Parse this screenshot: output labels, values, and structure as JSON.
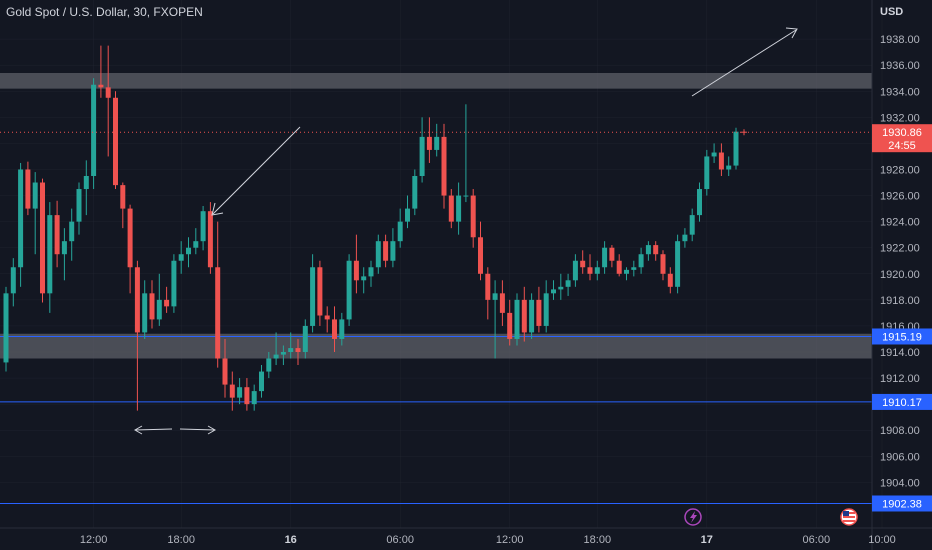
{
  "header": {
    "title": "Gold Spot / U.S. Dollar, 30, FXOPEN"
  },
  "price_axis": {
    "currency": "USD"
  },
  "price_tag": {
    "price": "1930.86",
    "countdown": "24:55"
  },
  "colors": {
    "bg": "#131722",
    "up": "#26a69a",
    "down": "#ef5350",
    "level_line": "#2962ff",
    "zone": "#5d6068",
    "grid": "#2a2e39"
  },
  "icons": [
    "flash-event-icon",
    "us-flag-event-icon"
  ],
  "chart_data": {
    "type": "candlestick",
    "title": "Gold Spot / U.S. Dollar, 30, FXOPEN",
    "ylim": [
      1900.5,
      1941.0
    ],
    "y_ticks": [
      "1904.00",
      "1906.00",
      "1908.00",
      "1910.00",
      "1912.00",
      "1914.00",
      "1916.00",
      "1918.00",
      "1920.00",
      "1922.00",
      "1924.00",
      "1926.00",
      "1928.00",
      "1930.00",
      "1932.00",
      "1934.00",
      "1936.00",
      "1938.00"
    ],
    "x_ticks": [
      {
        "label": "12:00",
        "index": 12,
        "bold": false
      },
      {
        "label": "18:00",
        "index": 24,
        "bold": false
      },
      {
        "label": "16",
        "index": 39,
        "bold": true
      },
      {
        "label": "06:00",
        "index": 54,
        "bold": false
      },
      {
        "label": "12:00",
        "index": 69,
        "bold": false
      },
      {
        "label": "18:00",
        "index": 81,
        "bold": false
      },
      {
        "label": "17",
        "index": 96,
        "bold": true
      },
      {
        "label": "06:00",
        "index": 111,
        "bold": false
      },
      {
        "label": "10:00",
        "index": 120,
        "bold": false
      }
    ],
    "candles": [
      [
        1913.2,
        1919.0,
        1912.5,
        1918.5
      ],
      [
        1918.5,
        1921.2,
        1917.5,
        1920.5
      ],
      [
        1920.5,
        1928.5,
        1919.0,
        1928.0
      ],
      [
        1928.0,
        1928.6,
        1924.5,
        1925.0
      ],
      [
        1925.0,
        1927.8,
        1921.5,
        1927.0
      ],
      [
        1927.0,
        1927.3,
        1917.8,
        1918.5
      ],
      [
        1918.5,
        1925.5,
        1917.0,
        1924.5
      ],
      [
        1924.5,
        1925.6,
        1920.5,
        1921.5
      ],
      [
        1921.5,
        1923.5,
        1919.5,
        1922.5
      ],
      [
        1922.5,
        1925.0,
        1921.0,
        1924.0
      ],
      [
        1924.0,
        1927.0,
        1923.0,
        1926.5
      ],
      [
        1926.5,
        1928.7,
        1924.5,
        1927.5
      ],
      [
        1927.5,
        1935.0,
        1926.5,
        1934.5
      ],
      [
        1934.5,
        1937.5,
        1933.5,
        1934.3
      ],
      [
        1934.3,
        1937.5,
        1929.0,
        1933.5
      ],
      [
        1933.5,
        1934.0,
        1926.5,
        1926.8
      ],
      [
        1926.8,
        1927.0,
        1923.5,
        1925.0
      ],
      [
        1925.0,
        1925.3,
        1918.5,
        1920.5
      ],
      [
        1920.5,
        1921.0,
        1909.5,
        1915.5
      ],
      [
        1915.5,
        1919.5,
        1915.0,
        1918.5
      ],
      [
        1918.5,
        1919.5,
        1915.8,
        1916.5
      ],
      [
        1916.5,
        1920.0,
        1916.0,
        1918.0
      ],
      [
        1918.0,
        1919.0,
        1917.0,
        1917.5
      ],
      [
        1917.5,
        1921.5,
        1917.0,
        1921.0
      ],
      [
        1921.0,
        1922.5,
        1920.0,
        1921.5
      ],
      [
        1921.5,
        1922.8,
        1920.5,
        1922.0
      ],
      [
        1922.0,
        1923.5,
        1921.5,
        1922.5
      ],
      [
        1922.5,
        1925.2,
        1921.8,
        1924.8
      ],
      [
        1924.8,
        1925.5,
        1920.0,
        1920.5
      ],
      [
        1920.5,
        1924.0,
        1912.8,
        1913.5
      ],
      [
        1913.5,
        1915.0,
        1910.5,
        1911.5
      ],
      [
        1911.5,
        1912.5,
        1909.5,
        1910.5
      ],
      [
        1910.5,
        1912.0,
        1910.0,
        1911.3
      ],
      [
        1911.3,
        1912.0,
        1909.5,
        1910.0
      ],
      [
        1910.0,
        1911.5,
        1909.5,
        1911.0
      ],
      [
        1911.0,
        1913.0,
        1910.5,
        1912.5
      ],
      [
        1912.5,
        1914.0,
        1912.0,
        1913.5
      ],
      [
        1913.5,
        1915.5,
        1913.0,
        1913.8
      ],
      [
        1913.8,
        1914.5,
        1913.0,
        1914.0
      ],
      [
        1914.0,
        1915.5,
        1913.5,
        1914.3
      ],
      [
        1914.3,
        1915.0,
        1913.0,
        1914.0
      ],
      [
        1914.0,
        1916.5,
        1913.5,
        1916.0
      ],
      [
        1916.0,
        1921.5,
        1915.5,
        1920.5
      ],
      [
        1920.5,
        1921.0,
        1916.0,
        1916.8
      ],
      [
        1916.8,
        1917.5,
        1915.5,
        1916.5
      ],
      [
        1916.5,
        1917.5,
        1914.0,
        1915.0
      ],
      [
        1915.0,
        1917.0,
        1914.5,
        1916.5
      ],
      [
        1916.5,
        1921.5,
        1916.0,
        1921.0
      ],
      [
        1921.0,
        1923.0,
        1918.5,
        1919.5
      ],
      [
        1919.5,
        1920.5,
        1918.5,
        1919.8
      ],
      [
        1919.8,
        1921.0,
        1919.0,
        1920.5
      ],
      [
        1920.5,
        1923.0,
        1920.0,
        1922.5
      ],
      [
        1922.5,
        1923.0,
        1920.5,
        1921.0
      ],
      [
        1921.0,
        1923.5,
        1920.5,
        1922.5
      ],
      [
        1922.5,
        1925.0,
        1922.0,
        1924.0
      ],
      [
        1924.0,
        1926.0,
        1923.5,
        1925.0
      ],
      [
        1925.0,
        1928.0,
        1924.5,
        1927.5
      ],
      [
        1927.5,
        1932.0,
        1927.0,
        1930.5
      ],
      [
        1930.5,
        1932.0,
        1928.5,
        1929.5
      ],
      [
        1929.5,
        1931.5,
        1929.0,
        1930.5
      ],
      [
        1930.5,
        1931.5,
        1925.0,
        1926.0
      ],
      [
        1926.0,
        1926.5,
        1923.5,
        1924.0
      ],
      [
        1924.0,
        1927.0,
        1923.0,
        1926.0
      ],
      [
        1926.0,
        1933.0,
        1925.5,
        1926.0
      ],
      [
        1926.0,
        1926.5,
        1922.0,
        1922.8
      ],
      [
        1922.8,
        1924.0,
        1919.5,
        1920.0
      ],
      [
        1920.0,
        1920.5,
        1916.5,
        1918.0
      ],
      [
        1918.0,
        1919.5,
        1913.5,
        1918.5
      ],
      [
        1918.5,
        1919.5,
        1916.0,
        1917.0
      ],
      [
        1917.0,
        1918.0,
        1914.5,
        1915.0
      ],
      [
        1915.0,
        1918.5,
        1914.5,
        1918.0
      ],
      [
        1918.0,
        1919.0,
        1914.8,
        1915.5
      ],
      [
        1915.5,
        1918.5,
        1915.0,
        1918.0
      ],
      [
        1918.0,
        1919.0,
        1915.5,
        1916.0
      ],
      [
        1916.0,
        1919.5,
        1915.5,
        1918.5
      ],
      [
        1918.5,
        1919.5,
        1918.0,
        1918.8
      ],
      [
        1918.8,
        1920.0,
        1918.0,
        1919.0
      ],
      [
        1919.0,
        1920.0,
        1918.3,
        1919.5
      ],
      [
        1919.5,
        1921.5,
        1919.0,
        1921.0
      ],
      [
        1921.0,
        1921.8,
        1920.0,
        1920.5
      ],
      [
        1920.5,
        1921.5,
        1919.5,
        1920.0
      ],
      [
        1920.0,
        1921.0,
        1919.5,
        1920.5
      ],
      [
        1920.5,
        1922.5,
        1920.0,
        1922.0
      ],
      [
        1922.0,
        1922.2,
        1920.5,
        1921.0
      ],
      [
        1921.0,
        1921.5,
        1919.8,
        1920.0
      ],
      [
        1920.0,
        1920.5,
        1919.5,
        1920.3
      ],
      [
        1920.3,
        1921.0,
        1919.8,
        1920.5
      ],
      [
        1920.5,
        1922.0,
        1920.0,
        1921.5
      ],
      [
        1921.5,
        1922.5,
        1921.0,
        1922.2
      ],
      [
        1922.2,
        1922.5,
        1921.0,
        1921.5
      ],
      [
        1921.5,
        1921.8,
        1919.5,
        1920.0
      ],
      [
        1920.0,
        1920.5,
        1918.5,
        1919.0
      ],
      [
        1919.0,
        1923.0,
        1918.5,
        1922.5
      ],
      [
        1922.5,
        1923.5,
        1922.0,
        1923.0
      ],
      [
        1923.0,
        1925.0,
        1922.5,
        1924.5
      ],
      [
        1924.5,
        1927.0,
        1924.0,
        1926.5
      ],
      [
        1926.5,
        1929.5,
        1926.0,
        1929.0
      ],
      [
        1929.0,
        1930.0,
        1928.5,
        1929.3
      ],
      [
        1929.3,
        1930.0,
        1927.5,
        1928.0
      ],
      [
        1928.0,
        1929.0,
        1927.5,
        1928.3
      ],
      [
        1928.3,
        1931.2,
        1928.0,
        1930.9
      ]
    ],
    "zones": [
      [
        1934.2,
        1935.4
      ],
      [
        1913.5,
        1915.4
      ]
    ],
    "levels": [
      {
        "price": 1915.19,
        "label": "1915.19"
      },
      {
        "price": 1910.17,
        "label": "1910.17"
      },
      {
        "price": 1902.38,
        "label": "1902.38"
      }
    ],
    "last_price": 1930.86
  }
}
